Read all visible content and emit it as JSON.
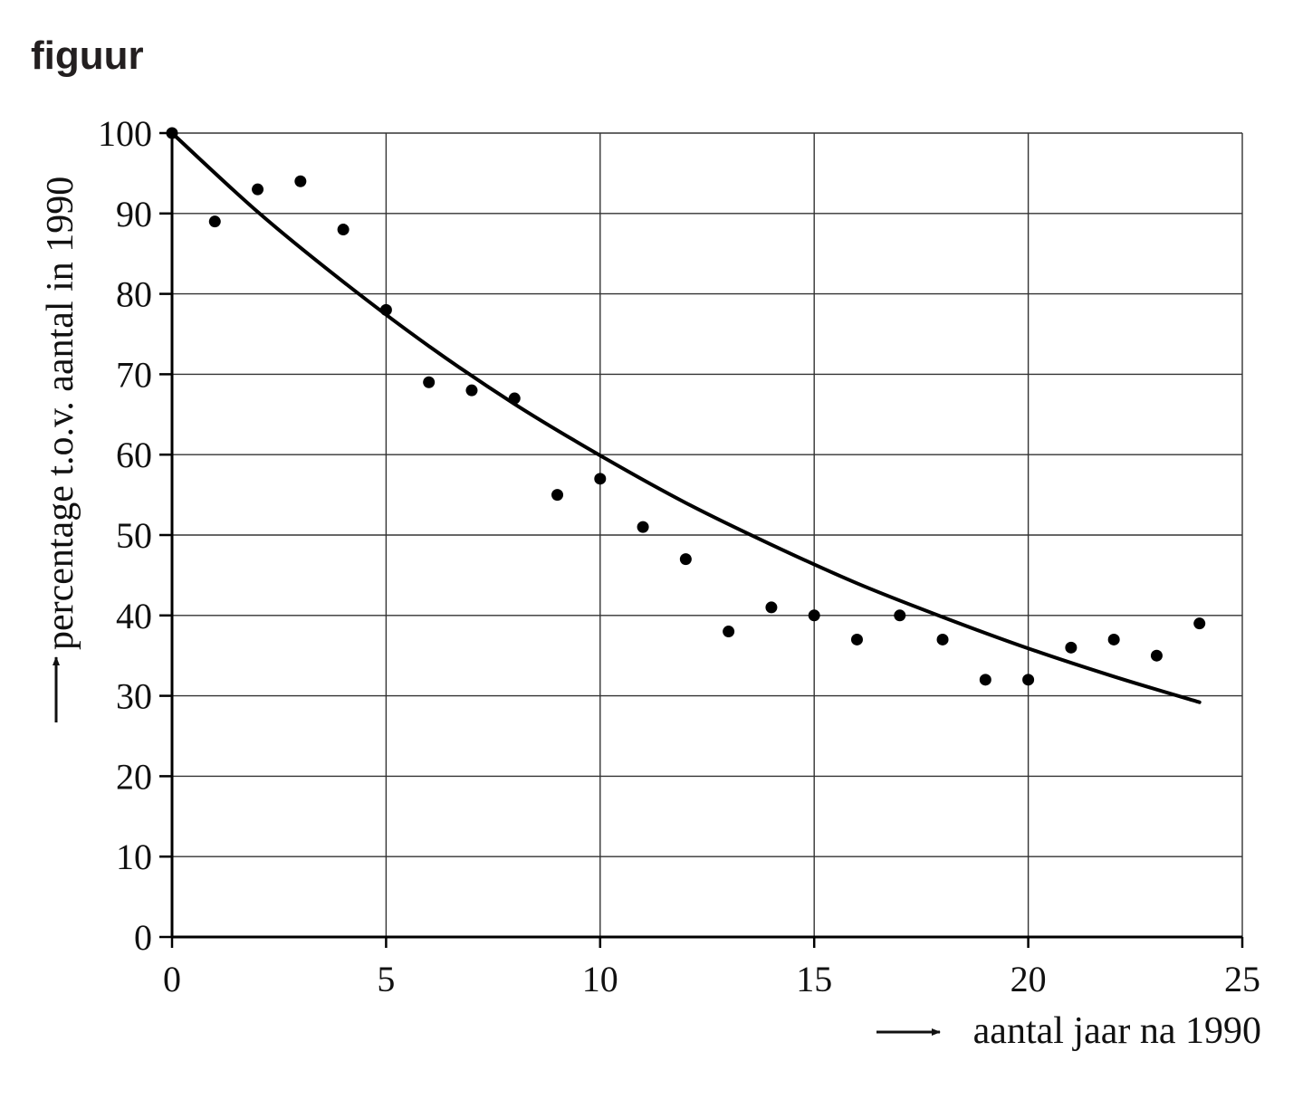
{
  "figure_label": "figuur",
  "chart_data": {
    "type": "scatter",
    "xlabel": "aantal jaar na 1990",
    "ylabel": "percentage t.o.v. aantal in 1990",
    "xlim": [
      0,
      25
    ],
    "ylim": [
      0,
      100
    ],
    "x_ticks": [
      0,
      5,
      10,
      15,
      20,
      25
    ],
    "y_ticks": [
      0,
      10,
      20,
      30,
      40,
      50,
      60,
      70,
      80,
      90,
      100
    ],
    "x_tick_labels": [
      "0",
      "5",
      "10",
      "15",
      "20",
      "25"
    ],
    "y_tick_labels": [
      "0",
      "10",
      "20",
      "30",
      "40",
      "50",
      "60",
      "70",
      "80",
      "90",
      "100"
    ],
    "grid": true,
    "axis_arrows": true,
    "series": [
      {
        "kind": "points",
        "x": [
          0,
          1,
          2,
          3,
          4,
          5,
          6,
          7,
          8,
          9,
          10,
          11,
          12,
          13,
          14,
          15,
          16,
          17,
          18,
          19,
          20,
          21,
          22,
          23,
          24
        ],
        "values": [
          100,
          89,
          93,
          94,
          88,
          78,
          69,
          68,
          67,
          55,
          57,
          51,
          47,
          38,
          41,
          40,
          37,
          40,
          37,
          32,
          32,
          36,
          37,
          35,
          39
        ]
      },
      {
        "kind": "curve",
        "x": [
          0,
          2,
          4,
          6,
          8,
          10,
          12,
          14,
          16,
          18,
          20,
          22,
          24
        ],
        "values": [
          100,
          90.2,
          81.5,
          73.5,
          66.3,
          59.9,
          54.0,
          48.8,
          44.0,
          39.8,
          35.9,
          32.4,
          29.2
        ]
      }
    ],
    "colors": {
      "marks": "#000000",
      "grid": "#333333",
      "text": "#111111"
    }
  }
}
